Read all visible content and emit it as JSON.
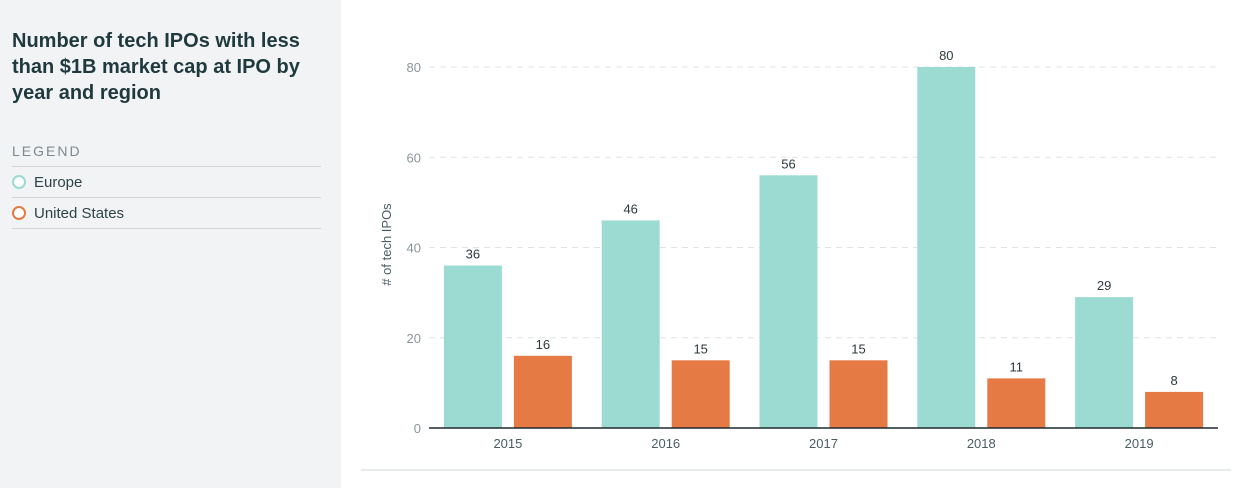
{
  "sidebar": {
    "title": "Number of tech IPOs with less than $1B market cap at IPO by year and region",
    "legend_heading": "LEGEND",
    "legend": [
      {
        "label": "Europe",
        "color": "#9bdbd1"
      },
      {
        "label": "United States",
        "color": "#e67a45"
      }
    ]
  },
  "chart_data": {
    "type": "bar",
    "title": "Number of tech IPOs with less than $1B market cap at IPO by year and region",
    "xlabel": "",
    "ylabel": "# of tech IPOs",
    "categories": [
      "2015",
      "2016",
      "2017",
      "2018",
      "2019"
    ],
    "series": [
      {
        "name": "Europe",
        "color": "#9bdbd1",
        "values": [
          36,
          46,
          56,
          80,
          29
        ]
      },
      {
        "name": "United States",
        "color": "#e67a45",
        "values": [
          16,
          15,
          15,
          11,
          8
        ]
      }
    ],
    "ylim": [
      0,
      80
    ],
    "yticks": [
      0,
      20,
      40,
      60,
      80
    ],
    "grid": true,
    "legend_position": "left-sidebar"
  }
}
